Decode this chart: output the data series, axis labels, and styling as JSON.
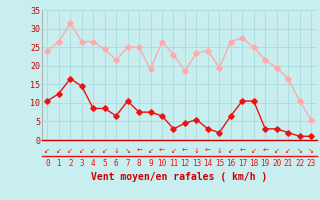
{
  "x": [
    0,
    1,
    2,
    3,
    4,
    5,
    6,
    7,
    8,
    9,
    10,
    11,
    12,
    13,
    14,
    15,
    16,
    17,
    18,
    19,
    20,
    21,
    22,
    23
  ],
  "wind_avg": [
    10.5,
    12.5,
    16.5,
    14.5,
    8.5,
    8.5,
    6.5,
    10.5,
    7.5,
    7.5,
    6.5,
    3.0,
    4.5,
    5.5,
    3.0,
    2.0,
    6.5,
    10.5,
    10.5,
    3.0,
    3.0,
    2.0,
    1.0,
    1.0
  ],
  "wind_gust": [
    24.0,
    26.5,
    31.5,
    26.5,
    26.5,
    24.5,
    21.5,
    25.0,
    25.0,
    19.0,
    26.5,
    23.0,
    18.5,
    23.5,
    24.0,
    19.5,
    26.5,
    27.5,
    25.0,
    21.5,
    19.5,
    16.5,
    10.5,
    5.5
  ],
  "avg_color": "#ee1111",
  "gust_color": "#ffaaaa",
  "bg_color": "#c8eef0",
  "grid_color": "#aadddd",
  "xlabel": "Vent moyen/en rafales ( km/h )",
  "ylim": [
    0,
    35
  ],
  "yticks": [
    0,
    5,
    10,
    15,
    20,
    25,
    30,
    35
  ],
  "axis_color": "#cc0000",
  "markersize": 2.8,
  "linewidth": 1.0,
  "arrows": [
    "↙",
    "↙",
    "↙",
    "↙",
    "↙",
    "↙",
    "↓",
    "↘",
    "←",
    "↙",
    "←",
    "↙",
    "←",
    "↓",
    "←",
    "↓",
    "↙",
    "←",
    "↙",
    "←",
    "↙",
    "↙",
    "↘",
    "↘"
  ]
}
